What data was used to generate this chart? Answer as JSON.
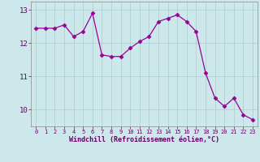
{
  "x": [
    0,
    1,
    2,
    3,
    4,
    5,
    6,
    7,
    8,
    9,
    10,
    11,
    12,
    13,
    14,
    15,
    16,
    17,
    18,
    19,
    20,
    21,
    22,
    23
  ],
  "y": [
    12.45,
    12.45,
    12.45,
    12.55,
    12.2,
    12.35,
    12.9,
    11.65,
    11.6,
    11.6,
    11.85,
    12.05,
    12.2,
    12.65,
    12.75,
    12.85,
    12.65,
    12.35,
    11.1,
    10.35,
    10.1,
    10.35,
    9.85,
    9.7
  ],
  "line_color": "#990099",
  "marker": "D",
  "marker_size": 2.5,
  "bg_color": "#cce8eb",
  "grid_color": "#aacccc",
  "xlabel": "Windchill (Refroidissement éolien,°C)",
  "xlabel_color": "#660066",
  "tick_color": "#660066",
  "ylim": [
    9.5,
    13.25
  ],
  "xlim": [
    -0.5,
    23.5
  ],
  "yticks": [
    10,
    11,
    12,
    13
  ],
  "xticks": [
    0,
    1,
    2,
    3,
    4,
    5,
    6,
    7,
    8,
    9,
    10,
    11,
    12,
    13,
    14,
    15,
    16,
    17,
    18,
    19,
    20,
    21,
    22,
    23
  ],
  "spine_color": "#888888",
  "figwidth": 3.2,
  "figheight": 2.0,
  "dpi": 100
}
